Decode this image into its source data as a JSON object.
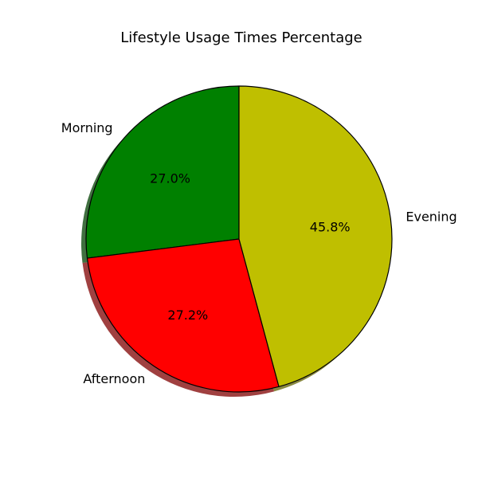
{
  "chart_data": {
    "type": "pie",
    "title": "Lifestyle Usage Times Percentage",
    "start_angle_deg": 90,
    "direction": "counterclockwise",
    "shadow": true,
    "slices": [
      {
        "label": "Morning",
        "value": 27.0,
        "pct_label": "27.0%",
        "color": "#008000"
      },
      {
        "label": "Afternoon",
        "value": 27.2,
        "pct_label": "27.2%",
        "color": "#ff0000"
      },
      {
        "label": "Evening",
        "value": 45.8,
        "pct_label": "45.8%",
        "color": "#bfbf00"
      }
    ],
    "edge_color": "#000000"
  }
}
